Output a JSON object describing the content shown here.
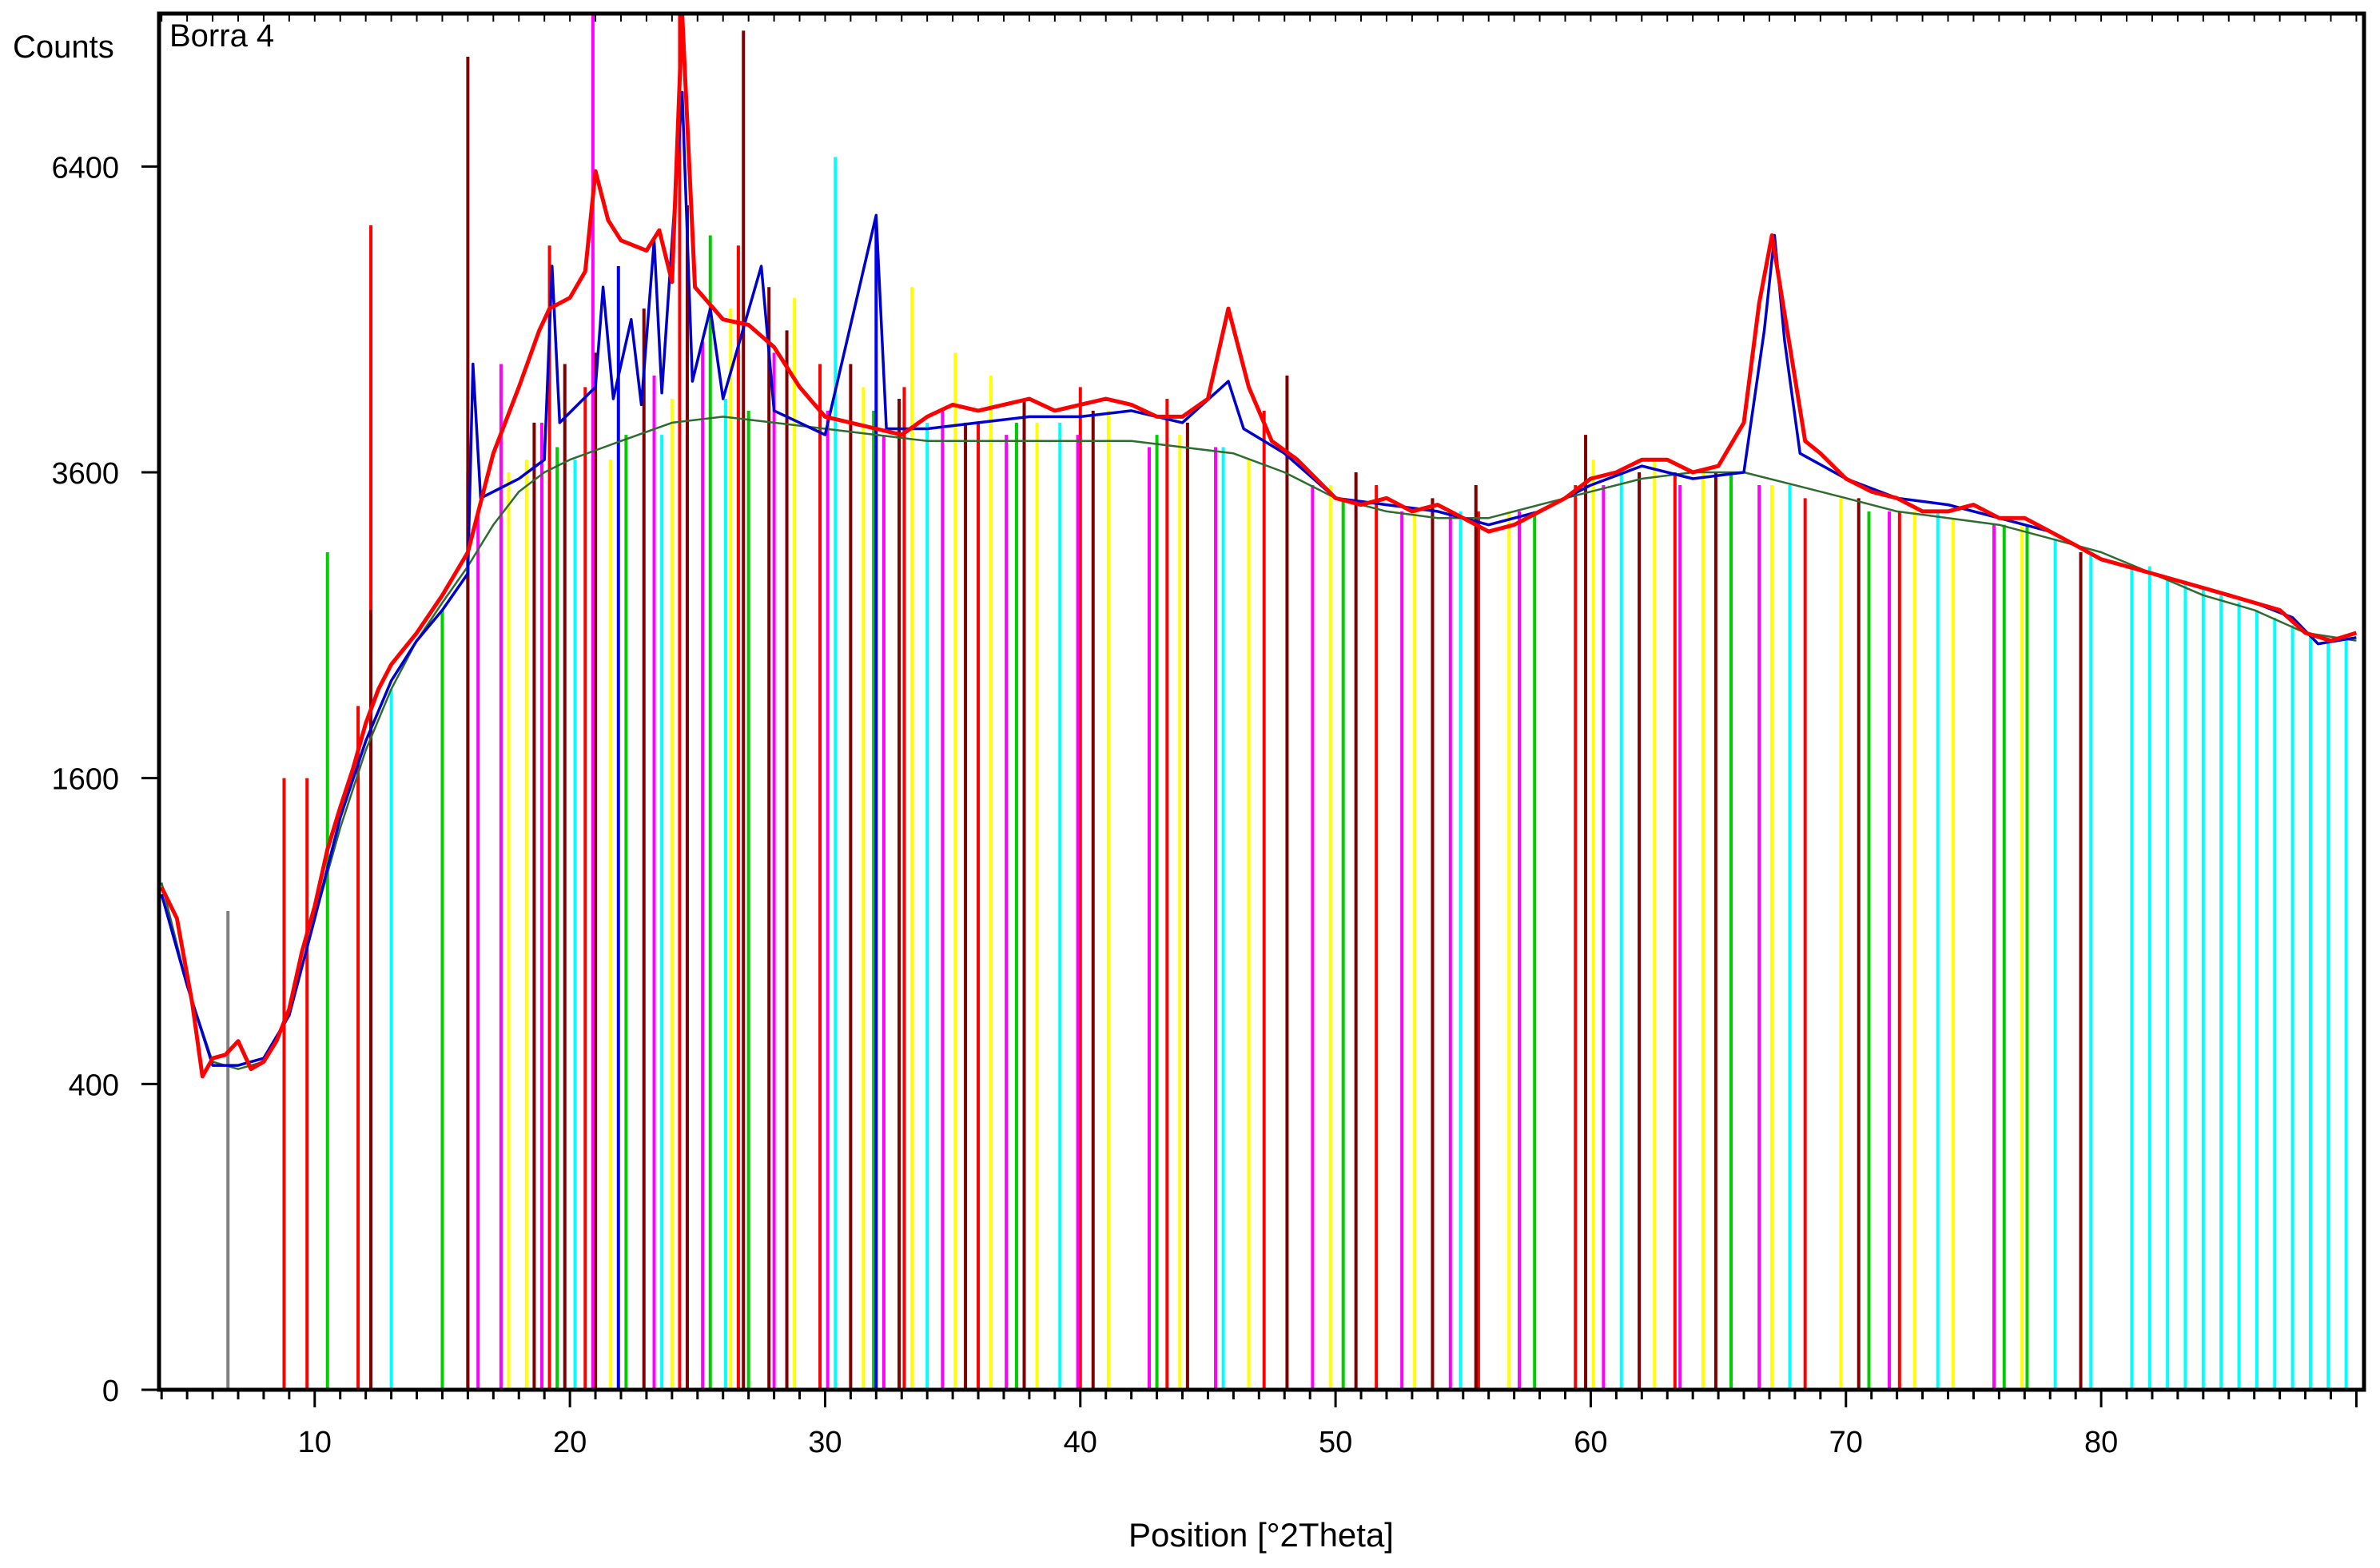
{
  "chart_data": {
    "type": "line",
    "title": "Borra 4",
    "ylabel": "Counts",
    "xlabel": "Position [°2Theta]",
    "scale": "sqrt",
    "xlim": [
      3.9,
      90.3
    ],
    "ylim": [
      0,
      8100
    ],
    "x_ticks": [
      10,
      20,
      30,
      40,
      50,
      60,
      70,
      80
    ],
    "x_tick_labels": [
      "10",
      "20",
      "30",
      "40",
      "50",
      "60",
      "70",
      "80"
    ],
    "y_ticks": [
      0,
      400,
      1600,
      3600,
      6400
    ],
    "y_tick_labels": [
      "0",
      "400",
      "1600",
      "3600",
      "6400"
    ],
    "series": [
      {
        "color": "#ff0000",
        "points": [
          [
            4.0,
            1080
          ],
          [
            4.6,
            950
          ],
          [
            5.2,
            640
          ],
          [
            5.6,
            420
          ],
          [
            6.0,
            470
          ],
          [
            6.5,
            480
          ],
          [
            7.0,
            520
          ],
          [
            7.5,
            440
          ],
          [
            8.0,
            460
          ],
          [
            8.5,
            520
          ],
          [
            9.0,
            620
          ],
          [
            9.5,
            820
          ],
          [
            10.0,
            1000
          ],
          [
            10.5,
            1250
          ],
          [
            11.0,
            1450
          ],
          [
            11.5,
            1650
          ],
          [
            12.0,
            1900
          ],
          [
            12.5,
            2100
          ],
          [
            13.0,
            2250
          ],
          [
            14.0,
            2450
          ],
          [
            15.0,
            2700
          ],
          [
            16.0,
            3000
          ],
          [
            17.0,
            3750
          ],
          [
            18.0,
            4300
          ],
          [
            18.8,
            4800
          ],
          [
            19.2,
            5000
          ],
          [
            20.0,
            5100
          ],
          [
            20.6,
            5350
          ],
          [
            21.0,
            6350
          ],
          [
            21.5,
            5850
          ],
          [
            22.0,
            5650
          ],
          [
            23.0,
            5550
          ],
          [
            23.5,
            5750
          ],
          [
            24.0,
            5250
          ],
          [
            24.4,
            8100
          ],
          [
            24.9,
            5200
          ],
          [
            26.0,
            4900
          ],
          [
            27.0,
            4850
          ],
          [
            28.0,
            4650
          ],
          [
            29.0,
            4300
          ],
          [
            30.0,
            4050
          ],
          [
            31.0,
            4000
          ],
          [
            32.0,
            3950
          ],
          [
            33.0,
            3900
          ],
          [
            34.0,
            4050
          ],
          [
            35.0,
            4150
          ],
          [
            36.0,
            4100
          ],
          [
            37.0,
            4150
          ],
          [
            38.0,
            4200
          ],
          [
            39.0,
            4100
          ],
          [
            40.0,
            4150
          ],
          [
            41.0,
            4200
          ],
          [
            42.0,
            4150
          ],
          [
            43.0,
            4050
          ],
          [
            44.0,
            4050
          ],
          [
            45.0,
            4200
          ],
          [
            45.8,
            5000
          ],
          [
            46.6,
            4300
          ],
          [
            47.5,
            3850
          ],
          [
            48.5,
            3700
          ],
          [
            50.0,
            3400
          ],
          [
            51.0,
            3350
          ],
          [
            52.0,
            3400
          ],
          [
            53.0,
            3300
          ],
          [
            54.0,
            3350
          ],
          [
            55.0,
            3250
          ],
          [
            56.0,
            3150
          ],
          [
            57.0,
            3200
          ],
          [
            58.0,
            3300
          ],
          [
            59.0,
            3400
          ],
          [
            60.0,
            3550
          ],
          [
            61.0,
            3600
          ],
          [
            62.0,
            3700
          ],
          [
            63.0,
            3700
          ],
          [
            64.0,
            3600
          ],
          [
            65.0,
            3650
          ],
          [
            66.0,
            4000
          ],
          [
            66.6,
            5050
          ],
          [
            67.1,
            5700
          ],
          [
            67.7,
            4800
          ],
          [
            68.4,
            3850
          ],
          [
            69.0,
            3750
          ],
          [
            70.0,
            3550
          ],
          [
            71.0,
            3450
          ],
          [
            72.0,
            3400
          ],
          [
            73.0,
            3300
          ],
          [
            74.0,
            3300
          ],
          [
            75.0,
            3350
          ],
          [
            76.0,
            3250
          ],
          [
            77.0,
            3250
          ],
          [
            78.0,
            3150
          ],
          [
            79.0,
            3050
          ],
          [
            80.0,
            2950
          ],
          [
            81.0,
            2900
          ],
          [
            82.0,
            2850
          ],
          [
            83.0,
            2800
          ],
          [
            84.0,
            2750
          ],
          [
            85.0,
            2700
          ],
          [
            86.0,
            2650
          ],
          [
            87.0,
            2600
          ],
          [
            88.0,
            2450
          ],
          [
            89.0,
            2400
          ],
          [
            90.0,
            2450
          ]
        ]
      },
      {
        "color": "#0000cc",
        "points": [
          [
            4.0,
            1050
          ],
          [
            5.0,
            700
          ],
          [
            6.0,
            450
          ],
          [
            7.0,
            450
          ],
          [
            8.0,
            470
          ],
          [
            9.0,
            600
          ],
          [
            10.0,
            950
          ],
          [
            11.0,
            1400
          ],
          [
            12.0,
            1800
          ],
          [
            13.0,
            2150
          ],
          [
            14.0,
            2400
          ],
          [
            15.0,
            2600
          ],
          [
            16.0,
            2850
          ],
          [
            16.2,
            4500
          ],
          [
            16.5,
            3400
          ],
          [
            18.0,
            3550
          ],
          [
            19.0,
            3700
          ],
          [
            19.3,
            5400
          ],
          [
            19.6,
            4000
          ],
          [
            21.0,
            4300
          ],
          [
            21.3,
            5200
          ],
          [
            21.7,
            4200
          ],
          [
            22.4,
            4900
          ],
          [
            22.8,
            4150
          ],
          [
            23.3,
            5650
          ],
          [
            23.6,
            4250
          ],
          [
            24.4,
            7200
          ],
          [
            24.8,
            4350
          ],
          [
            25.5,
            5000
          ],
          [
            26.0,
            4200
          ],
          [
            27.5,
            5400
          ],
          [
            28.0,
            4100
          ],
          [
            29.0,
            4000
          ],
          [
            30.0,
            3900
          ],
          [
            32.0,
            5900
          ],
          [
            32.4,
            3950
          ],
          [
            34.0,
            3950
          ],
          [
            36.0,
            4000
          ],
          [
            38.0,
            4050
          ],
          [
            40.0,
            4050
          ],
          [
            42.0,
            4100
          ],
          [
            44.0,
            4000
          ],
          [
            45.8,
            4350
          ],
          [
            46.4,
            3950
          ],
          [
            48.0,
            3750
          ],
          [
            50.0,
            3400
          ],
          [
            52.0,
            3350
          ],
          [
            54.0,
            3300
          ],
          [
            56.0,
            3200
          ],
          [
            58.0,
            3300
          ],
          [
            60.0,
            3500
          ],
          [
            62.0,
            3650
          ],
          [
            64.0,
            3550
          ],
          [
            66.0,
            3600
          ],
          [
            66.8,
            4800
          ],
          [
            67.2,
            5700
          ],
          [
            67.6,
            4700
          ],
          [
            68.2,
            3750
          ],
          [
            70.0,
            3550
          ],
          [
            72.0,
            3400
          ],
          [
            74.0,
            3350
          ],
          [
            76.0,
            3250
          ],
          [
            78.0,
            3150
          ],
          [
            80.0,
            2950
          ],
          [
            82.0,
            2850
          ],
          [
            84.0,
            2750
          ],
          [
            86.0,
            2650
          ],
          [
            87.5,
            2550
          ],
          [
            88.5,
            2380
          ],
          [
            90.0,
            2420
          ]
        ]
      },
      {
        "color": "#2e6b2e",
        "points": [
          [
            4.0,
            1100
          ],
          [
            5.0,
            700
          ],
          [
            6.0,
            460
          ],
          [
            7.0,
            440
          ],
          [
            8.0,
            460
          ],
          [
            9.0,
            600
          ],
          [
            10.0,
            950
          ],
          [
            11.0,
            1350
          ],
          [
            12.0,
            1750
          ],
          [
            13.0,
            2100
          ],
          [
            14.0,
            2400
          ],
          [
            15.0,
            2650
          ],
          [
            16.0,
            2900
          ],
          [
            17.0,
            3200
          ],
          [
            18.0,
            3450
          ],
          [
            19.0,
            3600
          ],
          [
            20.0,
            3700
          ],
          [
            22.0,
            3850
          ],
          [
            24.0,
            4000
          ],
          [
            26.0,
            4050
          ],
          [
            28.0,
            4000
          ],
          [
            30.0,
            3950
          ],
          [
            32.0,
            3900
          ],
          [
            34.0,
            3850
          ],
          [
            36.0,
            3850
          ],
          [
            38.0,
            3850
          ],
          [
            40.0,
            3850
          ],
          [
            42.0,
            3850
          ],
          [
            44.0,
            3800
          ],
          [
            46.0,
            3750
          ],
          [
            48.0,
            3600
          ],
          [
            50.0,
            3400
          ],
          [
            52.0,
            3300
          ],
          [
            54.0,
            3250
          ],
          [
            56.0,
            3250
          ],
          [
            58.0,
            3350
          ],
          [
            60.0,
            3450
          ],
          [
            62.0,
            3550
          ],
          [
            64.0,
            3600
          ],
          [
            66.0,
            3600
          ],
          [
            68.0,
            3500
          ],
          [
            70.0,
            3400
          ],
          [
            72.0,
            3300
          ],
          [
            74.0,
            3250
          ],
          [
            76.0,
            3200
          ],
          [
            78.0,
            3100
          ],
          [
            80.0,
            3000
          ],
          [
            82.0,
            2850
          ],
          [
            84.0,
            2700
          ],
          [
            86.0,
            2600
          ],
          [
            88.0,
            2450
          ],
          [
            90.0,
            2400
          ]
        ]
      }
    ],
    "reference_sticks": [
      {
        "color": "#808080",
        "x": [
          6.6
        ],
        "y": [
          980
        ]
      },
      {
        "color": "#ff0000",
        "x": [
          8.8,
          9.7,
          11.7,
          12.2,
          16.0,
          19.2,
          20.6,
          24.3,
          26.6,
          29.8,
          33.1,
          36.0,
          40.0,
          43.4,
          47.2,
          51.6,
          55.6,
          59.4,
          63.3,
          68.4,
          72.1
        ],
        "y": [
          1600,
          1600,
          2000,
          5800,
          3600,
          5600,
          4300,
          8100,
          5600,
          4500,
          4300,
          4000,
          4300,
          4200,
          4100,
          3500,
          3300,
          3500,
          3600,
          3400,
          3300
        ]
      },
      {
        "color": "#800000",
        "x": [
          12.2,
          16.0,
          18.6,
          19.8,
          21.0,
          22.9,
          24.6,
          26.8,
          27.8,
          28.5,
          31.0,
          32.9,
          35.5,
          37.8,
          40.5,
          44.2,
          48.1,
          50.8,
          53.8,
          55.5,
          59.8,
          61.9,
          64.9,
          70.5,
          79.2
        ],
        "y": [
          2600,
          7600,
          4000,
          4500,
          4600,
          5000,
          6000,
          7900,
          5200,
          4800,
          4500,
          4200,
          4000,
          4200,
          4100,
          4000,
          4400,
          3600,
          3400,
          3500,
          3900,
          3600,
          3600,
          3400,
          3000
        ]
      },
      {
        "color": "#ff00ff",
        "x": [
          16.4,
          17.3,
          18.9,
          20.9,
          23.3,
          25.2,
          28.0,
          30.1,
          32.3,
          34.6,
          37.1,
          39.9,
          42.7,
          45.3,
          49.1,
          52.6,
          54.5,
          57.2,
          60.5,
          63.5,
          66.6,
          71.7,
          75.8
        ],
        "y": [
          3300,
          4500,
          4000,
          8100,
          4400,
          4700,
          4600,
          4100,
          3900,
          4100,
          3900,
          3900,
          3800,
          3800,
          3500,
          3300,
          3300,
          3300,
          3500,
          3500,
          3500,
          3300,
          3200
        ]
      },
      {
        "color": "#ffff00",
        "x": [
          17.6,
          18.3,
          21.6,
          24.0,
          26.3,
          28.8,
          31.5,
          33.4,
          35.1,
          36.5,
          38.3,
          41.1,
          43.9,
          46.6,
          49.8,
          53.1,
          56.8,
          60.1,
          62.5,
          64.4,
          67.1,
          69.8,
          72.7,
          74.2,
          76.9
        ],
        "y": [
          3600,
          3700,
          3700,
          4200,
          5000,
          5100,
          4300,
          5200,
          4600,
          4400,
          4000,
          4100,
          3900,
          3700,
          3500,
          3300,
          3300,
          3700,
          3700,
          3600,
          3500,
          3400,
          3300,
          3250,
          3200
        ]
      },
      {
        "color": "#00cc00",
        "x": [
          10.5,
          15.0,
          19.5,
          22.2,
          25.5,
          27.0,
          31.9,
          37.5,
          43.0,
          50.3,
          57.8,
          65.5,
          70.9,
          76.2,
          77.1
        ],
        "y": [
          3000,
          2600,
          3800,
          3900,
          5700,
          4100,
          4100,
          4000,
          3900,
          3400,
          3300,
          3600,
          3300,
          3200,
          3200
        ]
      },
      {
        "color": "#00ffff",
        "x": [
          13.0,
          20.2,
          23.6,
          26.1,
          30.4,
          34.0,
          39.2,
          45.6,
          54.9,
          61.2,
          67.8,
          73.6,
          78.2,
          79.6,
          81.2,
          81.9,
          82.6,
          83.3,
          84.0,
          84.7,
          85.4,
          86.1,
          86.8,
          87.5,
          88.2,
          88.9,
          89.6
        ],
        "y": [
          2100,
          3700,
          3900,
          4200,
          6500,
          4000,
          4000,
          3800,
          3300,
          3600,
          3500,
          3300,
          3100,
          3000,
          2900,
          2900,
          2800,
          2800,
          2750,
          2700,
          2650,
          2600,
          2550,
          2500,
          2450,
          2400,
          2400
        ]
      },
      {
        "color": "#0000ff",
        "x": [
          21.9,
          32.0
        ],
        "y": [
          5400,
          5800
        ]
      }
    ]
  }
}
